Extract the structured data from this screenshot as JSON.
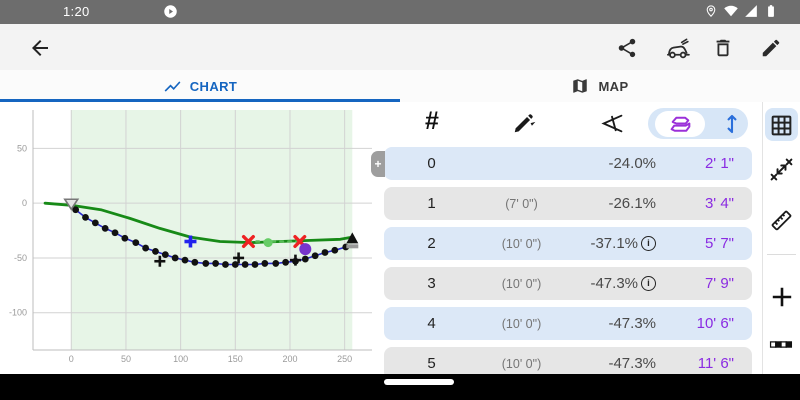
{
  "status_bar": {
    "time": "1:20"
  },
  "tabs": {
    "chart": "CHART",
    "map": "MAP"
  },
  "table": {
    "number_symbol": "#",
    "add_row_label": "+",
    "header_columns": [
      "point-number",
      "segment-length",
      "slope-percent",
      "terrain-profile",
      "elevation-distance"
    ],
    "rows": [
      {
        "num": "0",
        "len": "",
        "slope": "-24.0%",
        "info": false,
        "dist": "2' 1\""
      },
      {
        "num": "1",
        "len": "(7' 0\")",
        "slope": "-26.1%",
        "info": false,
        "dist": "3' 4\""
      },
      {
        "num": "2",
        "len": "(10' 0\")",
        "slope": "-37.1%",
        "info": true,
        "dist": "5' 7\""
      },
      {
        "num": "3",
        "len": "(10' 0\")",
        "slope": "-47.3%",
        "info": true,
        "dist": "7' 9\""
      },
      {
        "num": "4",
        "len": "(10' 0\")",
        "slope": "-47.3%",
        "info": false,
        "dist": "10' 6\""
      },
      {
        "num": "5",
        "len": "(10' 0\")",
        "slope": "-47.3%",
        "info": false,
        "dist": "11' 6\""
      }
    ]
  },
  "icons": {
    "status": [
      "play-circle",
      "location-pin",
      "wifi",
      "cell-signal",
      "battery"
    ],
    "toolbar": [
      "back-arrow",
      "share",
      "golf-cart",
      "trash",
      "pencil"
    ],
    "tab_icons": [
      "line-chart",
      "map"
    ],
    "table_header": [
      "number",
      "pencil-measure",
      "slope-angle",
      "terrain-profile",
      "elevation-arrows"
    ],
    "sidebar": [
      "table-grid",
      "measure-distance",
      "ruler",
      "add",
      "dash-pattern"
    ]
  },
  "colors": {
    "accent_blue": "#1565c0",
    "header_pill_blue": "#d7e6f7",
    "row_blue": "#dce8f7",
    "row_gray": "#e6e6e6",
    "distance_purple": "#8a2be2",
    "terrain_purple": "#9b30d9",
    "elevation_blue": "#2a6fdb",
    "status_bar_gray": "#6d6d6d",
    "green_line": "#178a17",
    "region_green": "#e7f5e7"
  },
  "chart_data": {
    "type": "line",
    "title": "",
    "xlabel": "",
    "ylabel": "",
    "xlim": [
      -35,
      275
    ],
    "ylim": [
      -134,
      85
    ],
    "xticks": [
      0,
      50,
      100,
      150,
      200,
      250
    ],
    "yticks": [
      50,
      0,
      -50,
      -100
    ],
    "grid": true,
    "region": {
      "x1": 0,
      "x2": 257,
      "color": "#e7f5e7"
    },
    "series": [
      {
        "name": "smoothed-elevation",
        "kind": "line",
        "color": "#178a17",
        "width": 2.8,
        "points": [
          [
            -24,
            0
          ],
          [
            0,
            -2
          ],
          [
            27,
            -6
          ],
          [
            54,
            -14
          ],
          [
            81,
            -23
          ],
          [
            109,
            -31
          ],
          [
            136,
            -35
          ],
          [
            164,
            -36
          ],
          [
            191,
            -35
          ],
          [
            219,
            -34
          ],
          [
            246,
            -33
          ],
          [
            257,
            -31
          ]
        ]
      },
      {
        "name": "measured-elevation",
        "kind": "line+dots",
        "color": "#2a2ad0",
        "width": 1.6,
        "dot_color": "#111111",
        "dot_radius": 3.4,
        "points": [
          [
            4,
            -6
          ],
          [
            13,
            -13
          ],
          [
            22,
            -18
          ],
          [
            31,
            -23
          ],
          [
            40,
            -27
          ],
          [
            49,
            -32
          ],
          [
            59,
            -36
          ],
          [
            68,
            -41
          ],
          [
            77,
            -44
          ],
          [
            86,
            -47
          ],
          [
            95,
            -50
          ],
          [
            104,
            -52
          ],
          [
            113,
            -54
          ],
          [
            123,
            -55
          ],
          [
            132,
            -55
          ],
          [
            141,
            -56
          ],
          [
            150,
            -56
          ],
          [
            159,
            -56
          ],
          [
            168,
            -56
          ],
          [
            177,
            -55
          ],
          [
            187,
            -55
          ],
          [
            196,
            -54
          ],
          [
            205,
            -53
          ],
          [
            214,
            -51
          ],
          [
            223,
            -48
          ],
          [
            232,
            -45
          ],
          [
            241,
            -43
          ],
          [
            251,
            -40
          ]
        ]
      }
    ],
    "dotted_segment": {
      "from": [
        162,
        -35
      ],
      "to": [
        209,
        -35
      ],
      "color": "#55bb55"
    },
    "markers": [
      {
        "type": "triangle-down-open",
        "x": 0,
        "y": -1,
        "color": "#777777"
      },
      {
        "type": "plus",
        "x": 81,
        "y": -53,
        "color": "#111111"
      },
      {
        "type": "plus",
        "x": 153,
        "y": -50,
        "color": "#111111"
      },
      {
        "type": "plus",
        "x": 205,
        "y": -52,
        "color": "#111111"
      },
      {
        "type": "blue-plus",
        "x": 109,
        "y": -35,
        "color": "#2222ee"
      },
      {
        "type": "red-x",
        "x": 162,
        "y": -35,
        "color": "#ee2222"
      },
      {
        "type": "green-dot",
        "x": 180,
        "y": -36,
        "color": "#66cc66"
      },
      {
        "type": "red-x",
        "x": 209,
        "y": -35,
        "color": "#ee2222"
      },
      {
        "type": "purple-dot",
        "x": 214,
        "y": -42,
        "color": "#7733cc"
      },
      {
        "type": "triangle-up",
        "x": 257,
        "y": -33,
        "color": "#111111"
      }
    ]
  }
}
